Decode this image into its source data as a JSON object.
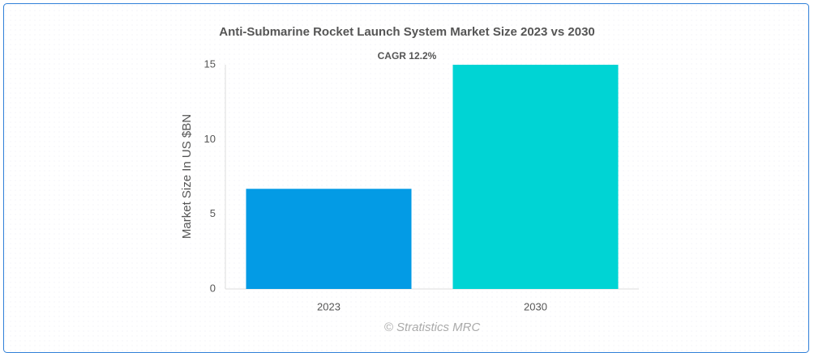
{
  "chart_data": {
    "type": "bar",
    "title": "Anti-Submarine Rocket Launch System Market Size 2023 vs 2030",
    "annotation": "CAGR 12.2%",
    "watermark": "© Stratistics MRC",
    "y_label": "Market Size In US $BN",
    "categories": [
      "2023",
      "2030"
    ],
    "values": [
      6.7,
      15
    ],
    "colors": [
      "#039be5",
      "#00d4d4"
    ],
    "ylim": [
      0,
      15
    ],
    "yticks": [
      0,
      5,
      10,
      15
    ],
    "grid": false
  }
}
